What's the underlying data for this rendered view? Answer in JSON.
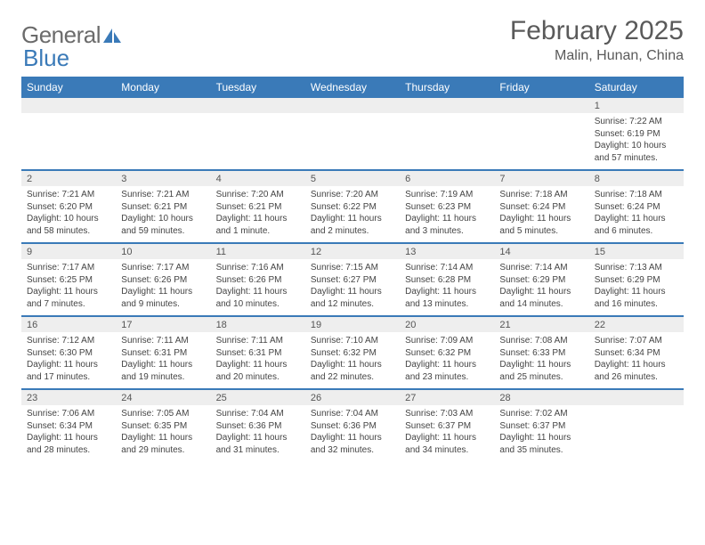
{
  "logo": {
    "word1": "General",
    "word2": "Blue"
  },
  "title": "February 2025",
  "location": "Malin, Hunan, China",
  "colors": {
    "header_bg": "#3a7ab8",
    "divider": "#3a7ab8",
    "date_bar_bg": "#eeeeee",
    "text": "#444444",
    "logo_gray": "#6b6b6b",
    "logo_blue": "#3a7ab8"
  },
  "day_names": [
    "Sunday",
    "Monday",
    "Tuesday",
    "Wednesday",
    "Thursday",
    "Friday",
    "Saturday"
  ],
  "weeks": [
    [
      {
        "date": "",
        "empty": true
      },
      {
        "date": "",
        "empty": true
      },
      {
        "date": "",
        "empty": true
      },
      {
        "date": "",
        "empty": true
      },
      {
        "date": "",
        "empty": true
      },
      {
        "date": "",
        "empty": true
      },
      {
        "date": "1",
        "sunrise": "Sunrise: 7:22 AM",
        "sunset": "Sunset: 6:19 PM",
        "daylight1": "Daylight: 10 hours",
        "daylight2": "and 57 minutes."
      }
    ],
    [
      {
        "date": "2",
        "sunrise": "Sunrise: 7:21 AM",
        "sunset": "Sunset: 6:20 PM",
        "daylight1": "Daylight: 10 hours",
        "daylight2": "and 58 minutes."
      },
      {
        "date": "3",
        "sunrise": "Sunrise: 7:21 AM",
        "sunset": "Sunset: 6:21 PM",
        "daylight1": "Daylight: 10 hours",
        "daylight2": "and 59 minutes."
      },
      {
        "date": "4",
        "sunrise": "Sunrise: 7:20 AM",
        "sunset": "Sunset: 6:21 PM",
        "daylight1": "Daylight: 11 hours",
        "daylight2": "and 1 minute."
      },
      {
        "date": "5",
        "sunrise": "Sunrise: 7:20 AM",
        "sunset": "Sunset: 6:22 PM",
        "daylight1": "Daylight: 11 hours",
        "daylight2": "and 2 minutes."
      },
      {
        "date": "6",
        "sunrise": "Sunrise: 7:19 AM",
        "sunset": "Sunset: 6:23 PM",
        "daylight1": "Daylight: 11 hours",
        "daylight2": "and 3 minutes."
      },
      {
        "date": "7",
        "sunrise": "Sunrise: 7:18 AM",
        "sunset": "Sunset: 6:24 PM",
        "daylight1": "Daylight: 11 hours",
        "daylight2": "and 5 minutes."
      },
      {
        "date": "8",
        "sunrise": "Sunrise: 7:18 AM",
        "sunset": "Sunset: 6:24 PM",
        "daylight1": "Daylight: 11 hours",
        "daylight2": "and 6 minutes."
      }
    ],
    [
      {
        "date": "9",
        "sunrise": "Sunrise: 7:17 AM",
        "sunset": "Sunset: 6:25 PM",
        "daylight1": "Daylight: 11 hours",
        "daylight2": "and 7 minutes."
      },
      {
        "date": "10",
        "sunrise": "Sunrise: 7:17 AM",
        "sunset": "Sunset: 6:26 PM",
        "daylight1": "Daylight: 11 hours",
        "daylight2": "and 9 minutes."
      },
      {
        "date": "11",
        "sunrise": "Sunrise: 7:16 AM",
        "sunset": "Sunset: 6:26 PM",
        "daylight1": "Daylight: 11 hours",
        "daylight2": "and 10 minutes."
      },
      {
        "date": "12",
        "sunrise": "Sunrise: 7:15 AM",
        "sunset": "Sunset: 6:27 PM",
        "daylight1": "Daylight: 11 hours",
        "daylight2": "and 12 minutes."
      },
      {
        "date": "13",
        "sunrise": "Sunrise: 7:14 AM",
        "sunset": "Sunset: 6:28 PM",
        "daylight1": "Daylight: 11 hours",
        "daylight2": "and 13 minutes."
      },
      {
        "date": "14",
        "sunrise": "Sunrise: 7:14 AM",
        "sunset": "Sunset: 6:29 PM",
        "daylight1": "Daylight: 11 hours",
        "daylight2": "and 14 minutes."
      },
      {
        "date": "15",
        "sunrise": "Sunrise: 7:13 AM",
        "sunset": "Sunset: 6:29 PM",
        "daylight1": "Daylight: 11 hours",
        "daylight2": "and 16 minutes."
      }
    ],
    [
      {
        "date": "16",
        "sunrise": "Sunrise: 7:12 AM",
        "sunset": "Sunset: 6:30 PM",
        "daylight1": "Daylight: 11 hours",
        "daylight2": "and 17 minutes."
      },
      {
        "date": "17",
        "sunrise": "Sunrise: 7:11 AM",
        "sunset": "Sunset: 6:31 PM",
        "daylight1": "Daylight: 11 hours",
        "daylight2": "and 19 minutes."
      },
      {
        "date": "18",
        "sunrise": "Sunrise: 7:11 AM",
        "sunset": "Sunset: 6:31 PM",
        "daylight1": "Daylight: 11 hours",
        "daylight2": "and 20 minutes."
      },
      {
        "date": "19",
        "sunrise": "Sunrise: 7:10 AM",
        "sunset": "Sunset: 6:32 PM",
        "daylight1": "Daylight: 11 hours",
        "daylight2": "and 22 minutes."
      },
      {
        "date": "20",
        "sunrise": "Sunrise: 7:09 AM",
        "sunset": "Sunset: 6:32 PM",
        "daylight1": "Daylight: 11 hours",
        "daylight2": "and 23 minutes."
      },
      {
        "date": "21",
        "sunrise": "Sunrise: 7:08 AM",
        "sunset": "Sunset: 6:33 PM",
        "daylight1": "Daylight: 11 hours",
        "daylight2": "and 25 minutes."
      },
      {
        "date": "22",
        "sunrise": "Sunrise: 7:07 AM",
        "sunset": "Sunset: 6:34 PM",
        "daylight1": "Daylight: 11 hours",
        "daylight2": "and 26 minutes."
      }
    ],
    [
      {
        "date": "23",
        "sunrise": "Sunrise: 7:06 AM",
        "sunset": "Sunset: 6:34 PM",
        "daylight1": "Daylight: 11 hours",
        "daylight2": "and 28 minutes."
      },
      {
        "date": "24",
        "sunrise": "Sunrise: 7:05 AM",
        "sunset": "Sunset: 6:35 PM",
        "daylight1": "Daylight: 11 hours",
        "daylight2": "and 29 minutes."
      },
      {
        "date": "25",
        "sunrise": "Sunrise: 7:04 AM",
        "sunset": "Sunset: 6:36 PM",
        "daylight1": "Daylight: 11 hours",
        "daylight2": "and 31 minutes."
      },
      {
        "date": "26",
        "sunrise": "Sunrise: 7:04 AM",
        "sunset": "Sunset: 6:36 PM",
        "daylight1": "Daylight: 11 hours",
        "daylight2": "and 32 minutes."
      },
      {
        "date": "27",
        "sunrise": "Sunrise: 7:03 AM",
        "sunset": "Sunset: 6:37 PM",
        "daylight1": "Daylight: 11 hours",
        "daylight2": "and 34 minutes."
      },
      {
        "date": "28",
        "sunrise": "Sunrise: 7:02 AM",
        "sunset": "Sunset: 6:37 PM",
        "daylight1": "Daylight: 11 hours",
        "daylight2": "and 35 minutes."
      },
      {
        "date": "",
        "empty": true
      }
    ]
  ]
}
